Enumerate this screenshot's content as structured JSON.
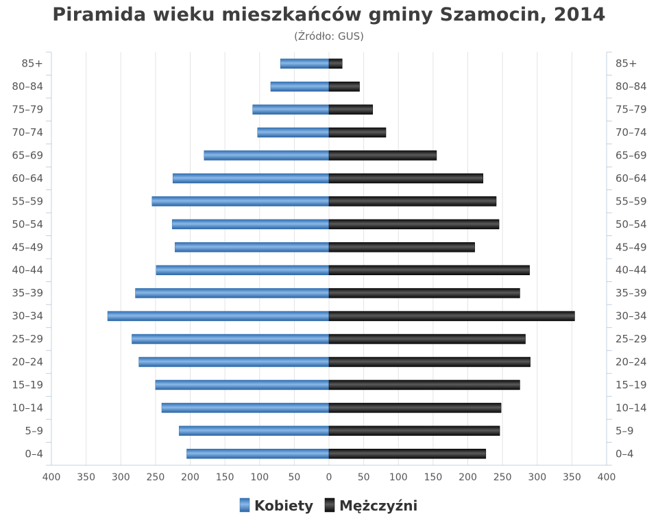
{
  "chart_data": {
    "type": "bar",
    "orientation": "horizontal",
    "subtype": "population-pyramid",
    "title": "Piramida wieku mieszkańców gminy Szamocin, 2014",
    "subtitle": "(Źródło: GUS)",
    "categories": [
      "85+",
      "80–84",
      "75–79",
      "70–74",
      "65–69",
      "60–64",
      "55–59",
      "50–54",
      "45–49",
      "40–44",
      "35–39",
      "30–34",
      "25–29",
      "20–24",
      "15–19",
      "10–14",
      "5–9",
      "0–4"
    ],
    "series": [
      {
        "name": "Kobiety",
        "side": "left",
        "color": "#4a86c5",
        "values": [
          70,
          84,
          110,
          103,
          180,
          225,
          255,
          226,
          222,
          249,
          279,
          319,
          284,
          274,
          250,
          241,
          216,
          205
        ]
      },
      {
        "name": "Mężczyźni",
        "side": "right",
        "color": "#1a1a1a",
        "values": [
          19,
          44,
          63,
          82,
          155,
          222,
          241,
          245,
          210,
          289,
          275,
          354,
          283,
          290,
          275,
          248,
          246,
          226
        ]
      }
    ],
    "x_ticks": [
      "400",
      "350",
      "300",
      "250",
      "200",
      "150",
      "100",
      "50",
      "0",
      "50",
      "100",
      "150",
      "200",
      "250",
      "300",
      "350",
      "400"
    ],
    "xlim": [
      -400,
      400
    ],
    "grid": true,
    "legend_position": "bottom-center",
    "category_labels_on_both_sides": true
  }
}
